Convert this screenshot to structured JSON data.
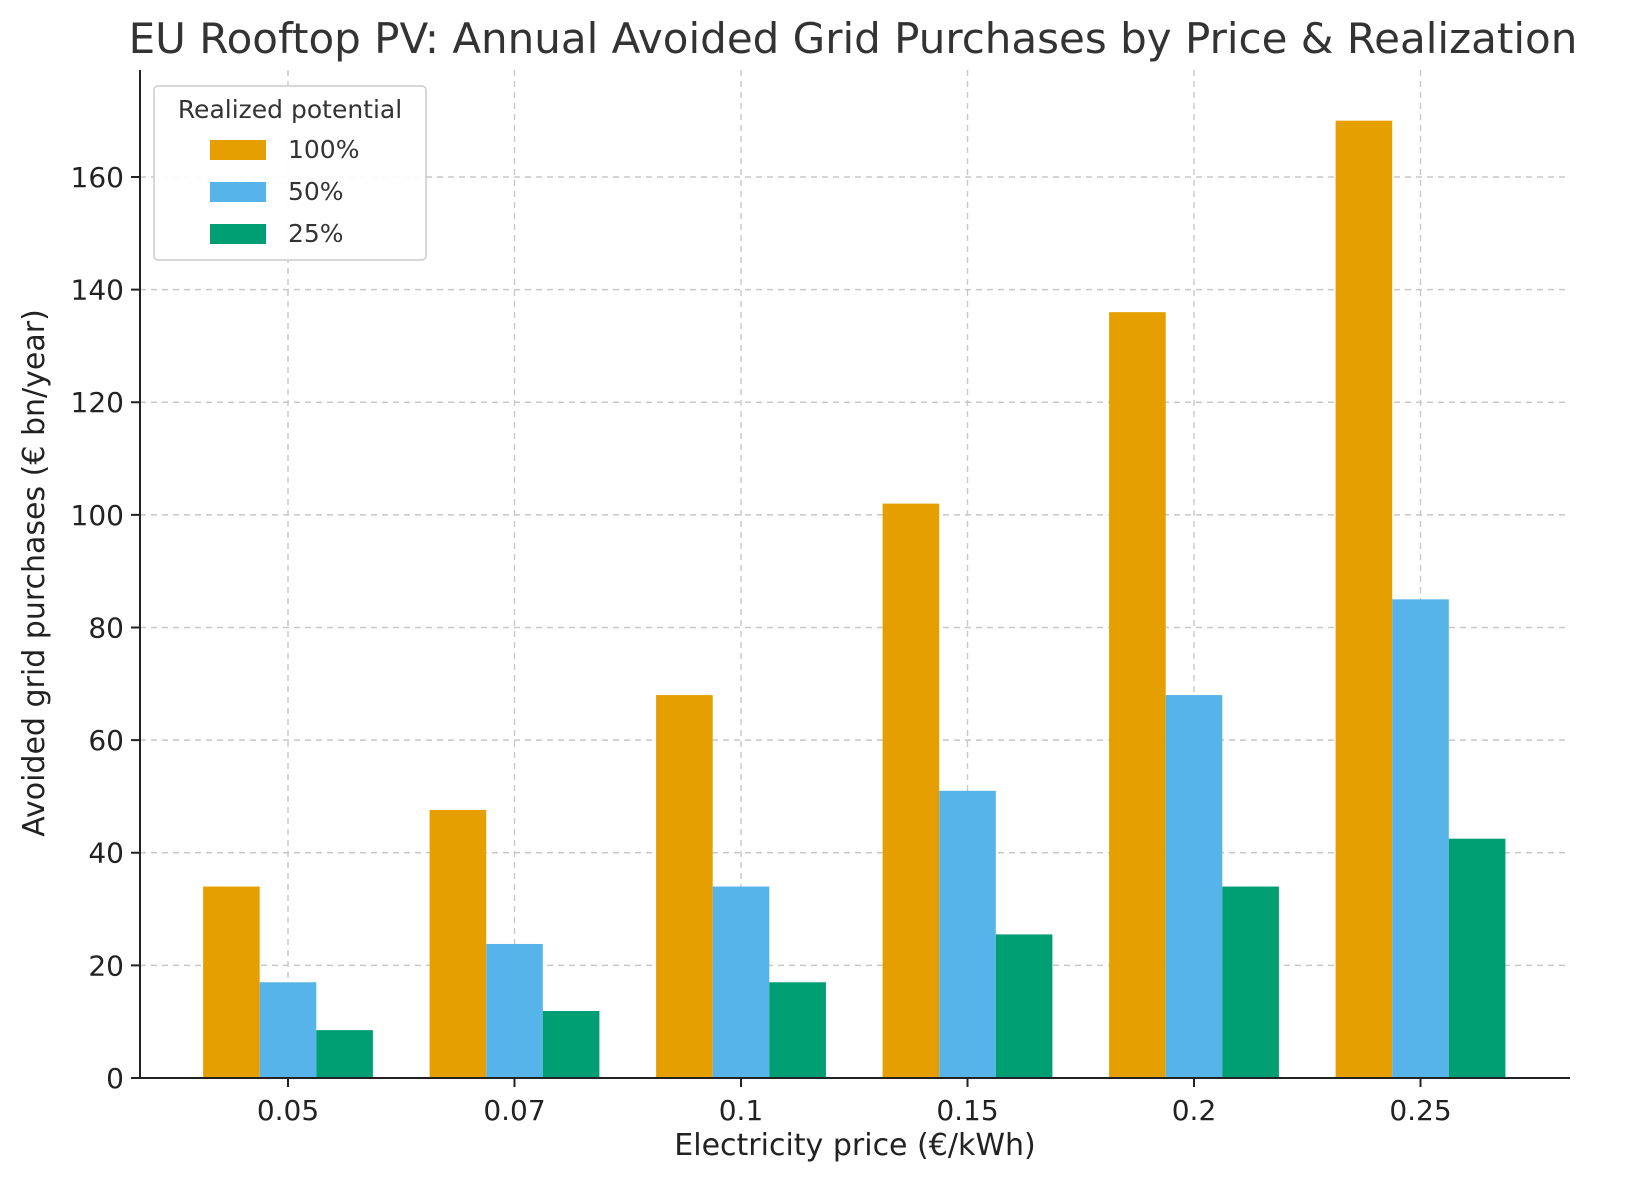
{
  "chart_data": {
    "type": "bar",
    "title": "EU Rooftop PV: Annual Avoided Grid Purchases by Price & Realization",
    "xlabel": "Electricity price (€/kWh)",
    "ylabel": "Avoided grid purchases (€ bn/year)",
    "categories": [
      "0.05",
      "0.07",
      "0.1",
      "0.15",
      "0.2",
      "0.25"
    ],
    "series": [
      {
        "name": "100%",
        "color": "#E69F00",
        "values": [
          34.0,
          47.6,
          68.0,
          102.0,
          136.0,
          170.0
        ]
      },
      {
        "name": "50%",
        "color": "#56B4E9",
        "values": [
          17.0,
          23.8,
          34.0,
          51.0,
          68.0,
          85.0
        ]
      },
      {
        "name": "25%",
        "color": "#009E73",
        "values": [
          8.5,
          11.9,
          17.0,
          25.5,
          34.0,
          42.5
        ]
      }
    ],
    "ylim": [
      0,
      179
    ],
    "yticks": [
      "0",
      "20",
      "40",
      "60",
      "80",
      "100",
      "120",
      "140",
      "160"
    ],
    "grid": true,
    "legend": {
      "title": "Realized potential",
      "placement": "top-left"
    }
  }
}
